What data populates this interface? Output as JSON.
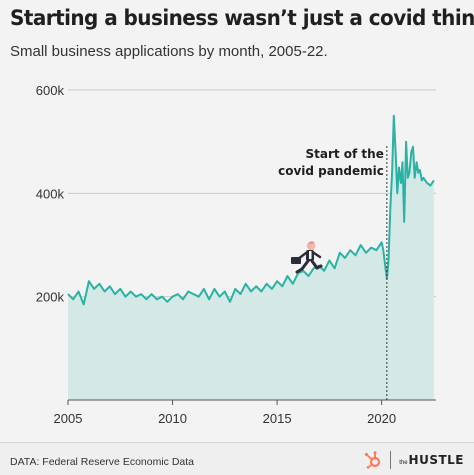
{
  "header": {
    "title": "Starting a business wasn’t just a covid thing",
    "subtitle": "Small business applications by month, 2005-22."
  },
  "footer": {
    "source": "DATA: Federal Reserve Economic Data",
    "brand_prefix": "the",
    "brand_name": "HUSTLE"
  },
  "colors": {
    "line": "#2ab3a5",
    "area": "#d4e8e6",
    "grid": "#c9c9c9",
    "background": "#f3f3f3"
  },
  "chart_data": {
    "type": "area",
    "title": "Small business applications by month, 2005-22.",
    "xlabel": "",
    "ylabel": "",
    "xlim": [
      2005,
      2022.6
    ],
    "ylim": [
      0,
      600000
    ],
    "x_ticks": [
      {
        "value": 2005,
        "label": "2005"
      },
      {
        "value": 2010,
        "label": "2010"
      },
      {
        "value": 2015,
        "label": "2015"
      },
      {
        "value": 2020,
        "label": "2020"
      }
    ],
    "y_ticks": [
      {
        "value": 200000,
        "label": "200k"
      },
      {
        "value": 400000,
        "label": "400k"
      },
      {
        "value": 600000,
        "label": "600k"
      }
    ],
    "grid": true,
    "annotation": {
      "x": 2020.25,
      "lines": [
        "Start of the",
        "covid pandemic"
      ]
    },
    "series": [
      {
        "x": [
          2005.0,
          2005.25,
          2005.5,
          2005.75,
          2006.0,
          2006.25,
          2006.5,
          2006.75,
          2007.0,
          2007.25,
          2007.5,
          2007.75,
          2008.0,
          2008.25,
          2008.5,
          2008.75,
          2009.0,
          2009.25,
          2009.5,
          2009.75,
          2010.0,
          2010.25,
          2010.5,
          2010.75,
          2011.0,
          2011.25,
          2011.5,
          2011.75,
          2012.0,
          2012.25,
          2012.5,
          2012.75,
          2013.0,
          2013.25,
          2013.5,
          2013.75,
          2014.0,
          2014.25,
          2014.5,
          2014.75,
          2015.0,
          2015.25,
          2015.5,
          2015.75,
          2016.0,
          2016.25,
          2016.5,
          2016.75,
          2017.0,
          2017.25,
          2017.5,
          2017.75,
          2018.0,
          2018.25,
          2018.5,
          2018.75,
          2019.0,
          2019.25,
          2019.5,
          2019.75,
          2020.0,
          2020.08,
          2020.17,
          2020.25,
          2020.33,
          2020.42,
          2020.5,
          2020.58,
          2020.67,
          2020.75,
          2020.83,
          2020.92,
          2021.0,
          2021.08,
          2021.17,
          2021.25,
          2021.33,
          2021.42,
          2021.5,
          2021.58,
          2021.67,
          2021.75,
          2021.83,
          2021.92,
          2022.0,
          2022.17,
          2022.33,
          2022.5
        ],
        "values": [
          205000,
          195000,
          210000,
          185000,
          230000,
          215000,
          225000,
          210000,
          220000,
          205000,
          215000,
          200000,
          210000,
          200000,
          205000,
          195000,
          205000,
          195000,
          200000,
          190000,
          200000,
          205000,
          195000,
          210000,
          205000,
          200000,
          215000,
          195000,
          215000,
          200000,
          210000,
          190000,
          215000,
          205000,
          225000,
          210000,
          220000,
          210000,
          225000,
          215000,
          230000,
          220000,
          240000,
          225000,
          245000,
          250000,
          240000,
          255000,
          260000,
          250000,
          270000,
          255000,
          285000,
          275000,
          290000,
          280000,
          300000,
          285000,
          295000,
          290000,
          305000,
          290000,
          260000,
          235000,
          270000,
          375000,
          440000,
          550000,
          480000,
          400000,
          450000,
          420000,
          460000,
          345000,
          500000,
          430000,
          440000,
          480000,
          490000,
          430000,
          460000,
          440000,
          445000,
          425000,
          430000,
          420000,
          415000,
          425000
        ]
      }
    ]
  }
}
